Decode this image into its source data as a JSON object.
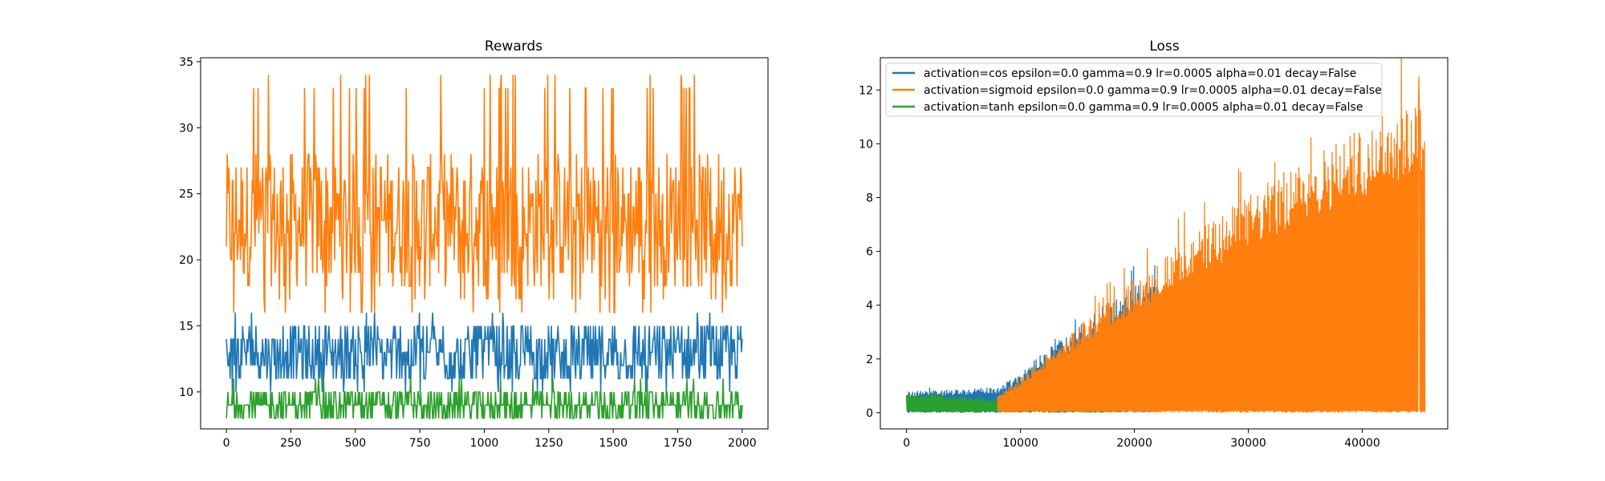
{
  "charts": {
    "colors": {
      "cos": "#1f77b4",
      "sigmoid": "#ff7f0e",
      "tanh": "#2ca02c",
      "axis": "#000000"
    },
    "legend_names": [
      "activation=cos epsilon=0.0 gamma=0.9 lr=0.0005 alpha=0.01 decay=False",
      "activation=sigmoid epsilon=0.0 gamma=0.9 lr=0.0005 alpha=0.01 decay=False",
      "activation=tanh epsilon=0.0 gamma=0.9 lr=0.0005 alpha=0.01 decay=False"
    ]
  },
  "chart_data": [
    {
      "type": "line",
      "title": "Rewards",
      "xlabel": "",
      "ylabel": "",
      "xlim": [
        -100,
        2100
      ],
      "ylim": [
        7.2,
        35.3
      ],
      "xticks": [
        0,
        250,
        500,
        750,
        1000,
        1250,
        1500,
        1750,
        2000
      ],
      "yticks": [
        10,
        15,
        20,
        25,
        30,
        35
      ],
      "legend": "none",
      "grid": false,
      "series": [
        {
          "color": "#ff7f0e",
          "x_range": [
            0,
            2000
          ],
          "y_min": 16,
          "y_max": 34,
          "y_typical": [
            18,
            28
          ],
          "y_mean": 22
        },
        {
          "color": "#1f77b4",
          "x_range": [
            0,
            2000
          ],
          "y_min": 10,
          "y_max": 16,
          "y_typical": [
            11,
            15
          ],
          "y_mean": 12.5
        },
        {
          "color": "#2ca02c",
          "x_range": [
            0,
            2000
          ],
          "y_min": 8,
          "y_max": 11,
          "y_typical": [
            8,
            10
          ],
          "y_mean": 9
        }
      ]
    },
    {
      "type": "line",
      "title": "Loss",
      "xlabel": "",
      "ylabel": "",
      "xlim": [
        -2300,
        47500
      ],
      "ylim": [
        -0.6,
        13.2
      ],
      "xticks": [
        0,
        10000,
        20000,
        30000,
        40000
      ],
      "yticks": [
        0,
        2,
        4,
        6,
        8,
        10,
        12
      ],
      "legend": "upper-left",
      "grid": false,
      "series": [
        {
          "name": "activation=cos epsilon=0.0 gamma=0.9 lr=0.0005 alpha=0.01 decay=False",
          "color": "#1f77b4",
          "x_range": [
            0,
            22000
          ],
          "envelope": [
            [
              0,
              0.8
            ],
            [
              8000,
              0.95
            ],
            [
              10000,
              1.5
            ],
            [
              12000,
              2.3
            ],
            [
              14000,
              2.9
            ],
            [
              16000,
              3.5
            ],
            [
              18000,
              4.3
            ],
            [
              20000,
              4.7
            ],
            [
              22000,
              5.1
            ]
          ]
        },
        {
          "name": "activation=sigmoid epsilon=0.0 gamma=0.9 lr=0.0005 alpha=0.01 decay=False",
          "color": "#ff7f0e",
          "x_range": [
            8000,
            45500
          ],
          "envelope": [
            [
              8000,
              0.7
            ],
            [
              10000,
              1.3
            ],
            [
              15000,
              3.2
            ],
            [
              20000,
              5.0
            ],
            [
              25000,
              6.6
            ],
            [
              30000,
              8.1
            ],
            [
              35000,
              9.5
            ],
            [
              40000,
              10.7
            ],
            [
              45500,
              12.0
            ]
          ],
          "peak": 12.5
        },
        {
          "name": "activation=tanh epsilon=0.0 gamma=0.9 lr=0.0005 alpha=0.01 decay=False",
          "color": "#2ca02c",
          "x_range": [
            0,
            18800
          ],
          "envelope": [
            [
              0,
              0.75
            ],
            [
              5000,
              0.6
            ],
            [
              8000,
              0.5
            ],
            [
              12000,
              0.7
            ],
            [
              16000,
              0.9
            ],
            [
              18800,
              1.1
            ]
          ]
        }
      ]
    }
  ]
}
